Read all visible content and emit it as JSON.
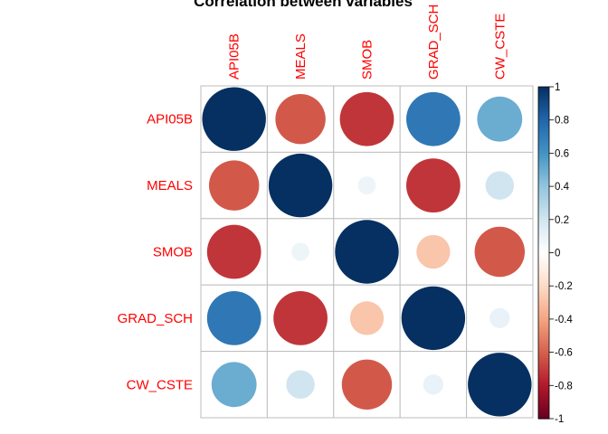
{
  "chart_data": {
    "type": "heatmap",
    "subtype": "correlation-circle-matrix",
    "title": "Correlation between variables",
    "variables": [
      "API05B",
      "MEALS",
      "SMOB",
      "GRAD_SCH",
      "CW_CSTE"
    ],
    "matrix": [
      [
        1.0,
        -0.62,
        -0.72,
        0.72,
        0.5
      ],
      [
        -0.62,
        1.0,
        0.08,
        -0.72,
        0.2
      ],
      [
        -0.72,
        0.08,
        1.0,
        -0.28,
        -0.62
      ],
      [
        0.72,
        -0.72,
        -0.28,
        1.0,
        0.1
      ],
      [
        0.5,
        0.2,
        -0.62,
        0.1,
        1.0
      ]
    ],
    "colorbar": {
      "range": [
        -1,
        1
      ],
      "ticks": [
        "1",
        "0.8",
        "0.6",
        "0.4",
        "0.2",
        "0",
        "-0.2",
        "-0.4",
        "-0.6",
        "-0.8",
        "-1"
      ],
      "colors": [
        "#67001F",
        "#B2182B",
        "#D6604D",
        "#F4A582",
        "#FDDBC7",
        "#FFFFFF",
        "#D1E5F0",
        "#92C5DE",
        "#4393C3",
        "#2166AC",
        "#053061"
      ]
    },
    "label_color": "#FF0000",
    "grid": true,
    "legend_position": "right"
  }
}
